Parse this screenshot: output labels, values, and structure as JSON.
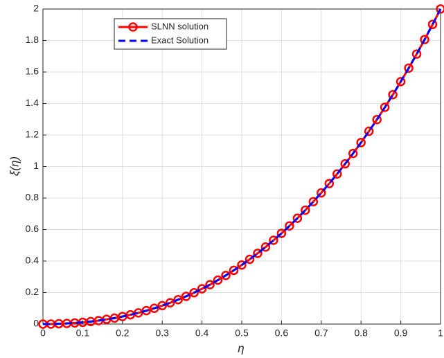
{
  "chart_data": {
    "type": "line",
    "xlabel": "η",
    "ylabel": "ξ(η)",
    "x": [
      0,
      0.02,
      0.04,
      0.06,
      0.08,
      0.1,
      0.12,
      0.14,
      0.16,
      0.18,
      0.2,
      0.22,
      0.24,
      0.26,
      0.28,
      0.3,
      0.32,
      0.34,
      0.36,
      0.38,
      0.4,
      0.42,
      0.44,
      0.46,
      0.48,
      0.5,
      0.52,
      0.54,
      0.56,
      0.58,
      0.6,
      0.62,
      0.64,
      0.66,
      0.68,
      0.7,
      0.72,
      0.74,
      0.76,
      0.78,
      0.8,
      0.82,
      0.84,
      0.86,
      0.88,
      0.9,
      0.92,
      0.94,
      0.96,
      0.98,
      1
    ],
    "series": [
      {
        "name": "SLNN solution",
        "color": "#ff0000",
        "marker": "circle",
        "values": [
          0,
          0,
          0.002,
          0.004,
          0.007,
          0.011,
          0.016,
          0.022,
          0.03,
          0.038,
          0.048,
          0.059,
          0.071,
          0.085,
          0.1,
          0.117,
          0.135,
          0.155,
          0.176,
          0.199,
          0.224,
          0.25,
          0.279,
          0.309,
          0.341,
          0.375,
          0.411,
          0.449,
          0.489,
          0.532,
          0.576,
          0.623,
          0.672,
          0.723,
          0.777,
          0.833,
          0.892,
          0.953,
          1.017,
          1.083,
          1.152,
          1.224,
          1.298,
          1.376,
          1.456,
          1.539,
          1.625,
          1.714,
          1.806,
          1.902,
          2
        ]
      },
      {
        "name": "Exact Solution",
        "color": "#0000ff",
        "dashed": true,
        "values": [
          0,
          0,
          0.002,
          0.004,
          0.007,
          0.011,
          0.016,
          0.022,
          0.03,
          0.038,
          0.048,
          0.059,
          0.071,
          0.085,
          0.1,
          0.117,
          0.135,
          0.155,
          0.176,
          0.199,
          0.224,
          0.25,
          0.279,
          0.309,
          0.341,
          0.375,
          0.411,
          0.449,
          0.489,
          0.532,
          0.576,
          0.623,
          0.672,
          0.723,
          0.777,
          0.833,
          0.892,
          0.953,
          1.017,
          1.083,
          1.152,
          1.224,
          1.298,
          1.376,
          1.456,
          1.539,
          1.625,
          1.714,
          1.806,
          1.902,
          2
        ]
      }
    ],
    "xlim": [
      0,
      1
    ],
    "xticks": [
      0,
      0.1,
      0.2,
      0.3,
      0.4,
      0.5,
      0.6,
      0.7,
      0.8,
      0.9,
      1
    ],
    "ylim": [
      0,
      2
    ],
    "yticks": [
      0,
      0.2,
      0.4,
      0.6,
      0.8,
      1,
      1.2,
      1.4,
      1.6,
      1.8,
      2
    ],
    "grid": true,
    "legend": "upper left"
  }
}
